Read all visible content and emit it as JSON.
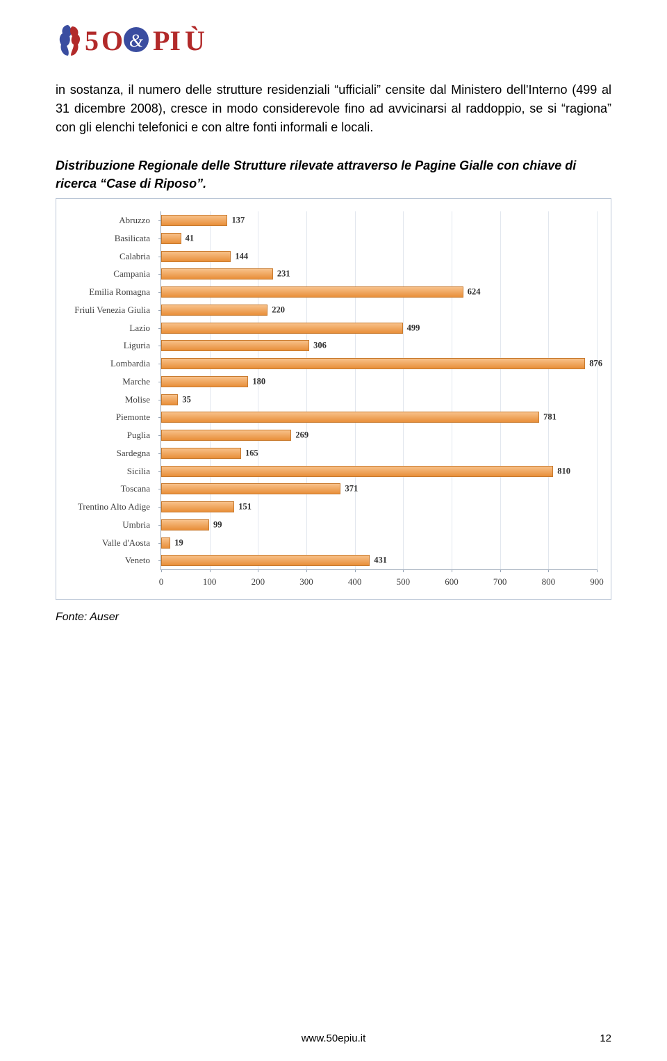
{
  "logo": {
    "brand_text_left": "5O",
    "brand_amp": "&",
    "brand_text_right": "PIÙ",
    "figure_color1": "#3a4da0",
    "figure_color2": "#b22a2a",
    "text_color": "#b22a2a",
    "amp_bg": "#3a4da0"
  },
  "paragraph": "in sostanza, il numero delle strutture residenziali “ufficiali” censite dal Ministero dell'Interno (499 al 31 dicembre 2008), cresce in modo considerevole fino ad avvicinarsi al raddoppio, se si “ragiona” con gli elenchi telefonici e con altre fonti informali e locali.",
  "chart_title": "Distribuzione Regionale delle Strutture rilevate attraverso le Pagine Gialle con chiave di ricerca “Case di Riposo”.",
  "chart": {
    "type": "bar-horizontal",
    "x_min": 0,
    "x_max": 900,
    "x_tick_step": 100,
    "x_ticks": [
      0,
      100,
      200,
      300,
      400,
      500,
      600,
      700,
      800,
      900
    ],
    "bar_fill_top": "#f8c18a",
    "bar_fill_bottom": "#e88f3a",
    "bar_border": "#c87a2e",
    "grid_color": "#e2e7ee",
    "axis_color": "#97a4b5",
    "label_font": "Georgia",
    "categories": [
      {
        "label": "Abruzzo",
        "value": 137
      },
      {
        "label": "Basilicata",
        "value": 41
      },
      {
        "label": "Calabria",
        "value": 144
      },
      {
        "label": "Campania",
        "value": 231
      },
      {
        "label": "Emilia Romagna",
        "value": 624
      },
      {
        "label": "Friuli Venezia Giulia",
        "value": 220
      },
      {
        "label": "Lazio",
        "value": 499
      },
      {
        "label": "Liguria",
        "value": 306
      },
      {
        "label": "Lombardia",
        "value": 876
      },
      {
        "label": "Marche",
        "value": 180
      },
      {
        "label": "Molise",
        "value": 35
      },
      {
        "label": "Piemonte",
        "value": 781
      },
      {
        "label": "Puglia",
        "value": 269
      },
      {
        "label": "Sardegna",
        "value": 165
      },
      {
        "label": "Sicilia",
        "value": 810
      },
      {
        "label": "Toscana",
        "value": 371
      },
      {
        "label": "Trentino Alto Adige",
        "value": 151
      },
      {
        "label": "Umbria",
        "value": 99
      },
      {
        "label": "Valle d'Aosta",
        "value": 19
      },
      {
        "label": "Veneto",
        "value": 431
      }
    ]
  },
  "source_label": "Fonte: Auser",
  "footer": {
    "url": "www.50epiu.it",
    "page": "12"
  }
}
